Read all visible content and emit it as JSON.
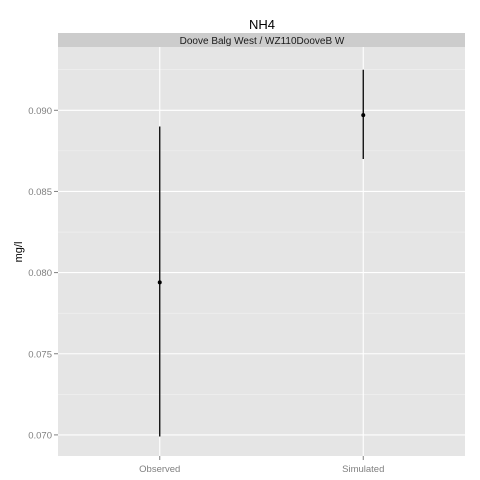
{
  "chart_data": {
    "type": "errorbar",
    "title": "NH4",
    "facet_label": "Doove Balg West / WZ110DooveB W",
    "xlabel": "",
    "ylabel": "mg/l",
    "categories": [
      "Observed",
      "Simulated"
    ],
    "points": [
      {
        "category": "Observed",
        "mean": 0.0794,
        "lower": 0.0699,
        "upper": 0.089
      },
      {
        "category": "Simulated",
        "mean": 0.0897,
        "lower": 0.087,
        "upper": 0.0925
      }
    ],
    "y_ticks": [
      "0.070",
      "0.075",
      "0.080",
      "0.085",
      "0.090"
    ],
    "y_tick_values": [
      0.07,
      0.075,
      0.08,
      0.085,
      0.09
    ],
    "ylim": [
      0.0687,
      0.0939
    ],
    "grid": true,
    "colors": {
      "panel_background": "#e5e5e5",
      "strip_background": "#cccccc",
      "grid_major": "#ffffff",
      "grid_minor": "#f2f2f2",
      "mark": "#000000"
    }
  }
}
